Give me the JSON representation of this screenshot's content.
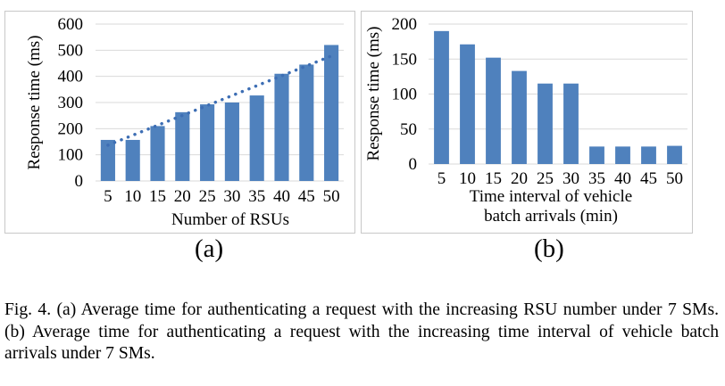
{
  "chart_data": [
    {
      "type": "bar",
      "panel": "(a)",
      "categories": [
        "5",
        "10",
        "15",
        "20",
        "25",
        "30",
        "35",
        "40",
        "45",
        "50"
      ],
      "values": [
        157,
        157,
        210,
        263,
        293,
        300,
        327,
        410,
        445,
        520
      ],
      "trendline": {
        "type": "linear",
        "style": "dotted",
        "from": 137,
        "to": 478
      },
      "xlabel": "Number of RSUs",
      "ylabel": "Response time (ms)",
      "ylim": [
        0,
        600
      ],
      "yticks": [
        "0",
        "100",
        "200",
        "300",
        "400",
        "500",
        "600"
      ],
      "grid": true,
      "bar_color": "#4f81bd",
      "trend_color": "#3d6eb4"
    },
    {
      "type": "bar",
      "panel": "(b)",
      "categories": [
        "5",
        "10",
        "15",
        "20",
        "25",
        "30",
        "35",
        "40",
        "45",
        "50"
      ],
      "values": [
        190,
        171,
        152,
        133,
        115,
        115,
        25,
        25,
        25,
        26
      ],
      "xlabel_lines": [
        "Time interval of vehicle",
        "batch arrivals (min)"
      ],
      "ylabel": "Response time (ms)",
      "ylim": [
        0,
        200
      ],
      "yticks": [
        "0",
        "50",
        "100",
        "150",
        "200"
      ],
      "grid": true,
      "bar_color": "#4f81bd"
    }
  ],
  "labels": {
    "a": "(a)",
    "b": "(b)"
  },
  "caption": "Fig. 4.   (a) Average time for authenticating a request with the increasing RSU number under 7 SMs. (b) Average time for authenticating a request with the increasing time interval of vehicle batch arrivals under 7 SMs."
}
